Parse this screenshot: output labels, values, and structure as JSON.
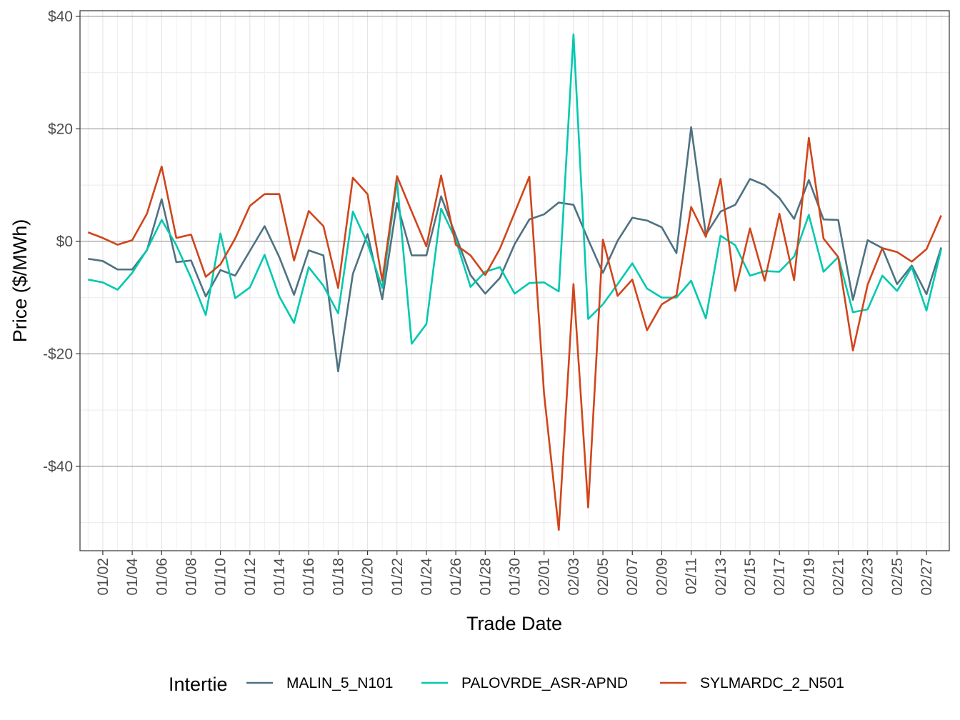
{
  "chart_data": {
    "type": "line",
    "title": "",
    "xlabel": "Trade Date",
    "ylabel": "Price ($/MWh)",
    "ylim": [
      -55,
      41
    ],
    "y_ticks": [
      -40,
      -20,
      0,
      20,
      40
    ],
    "y_tick_labels": [
      "-$40",
      "-$20",
      "$0",
      "$20",
      "$40"
    ],
    "x_tick_labels": [
      "01/02",
      "01/04",
      "01/06",
      "01/08",
      "01/10",
      "01/12",
      "01/14",
      "01/16",
      "01/18",
      "01/20",
      "01/22",
      "01/24",
      "01/26",
      "01/28",
      "01/30",
      "02/01",
      "02/03",
      "02/05",
      "02/07",
      "02/09",
      "02/11",
      "02/13",
      "02/15",
      "02/17",
      "02/19",
      "02/21",
      "02/23",
      "02/25",
      "02/27"
    ],
    "x": [
      "01/01",
      "01/02",
      "01/03",
      "01/04",
      "01/05",
      "01/06",
      "01/07",
      "01/08",
      "01/09",
      "01/10",
      "01/11",
      "01/12",
      "01/13",
      "01/14",
      "01/15",
      "01/16",
      "01/17",
      "01/18",
      "01/19",
      "01/20",
      "01/21",
      "01/22",
      "01/23",
      "01/24",
      "01/25",
      "01/26",
      "01/27",
      "01/28",
      "01/29",
      "01/30",
      "01/31",
      "02/01",
      "02/02",
      "02/03",
      "02/04",
      "02/05",
      "02/06",
      "02/07",
      "02/08",
      "02/09",
      "02/10",
      "02/11",
      "02/12",
      "02/13",
      "02/14",
      "02/15",
      "02/16",
      "02/17",
      "02/18",
      "02/19",
      "02/20",
      "02/21",
      "02/22",
      "02/23",
      "02/24",
      "02/25",
      "02/26",
      "02/27",
      "02/28"
    ],
    "grid": true,
    "legend": {
      "title": "Intertie",
      "position": "bottom"
    },
    "series": [
      {
        "name": "MALIN_5_N101",
        "color": "#4e7282",
        "values": [
          -3.1,
          -3.5,
          -5.0,
          -5.0,
          -1.6,
          7.5,
          -3.7,
          -3.4,
          -9.8,
          -5.1,
          -6.1,
          -1.7,
          2.7,
          -2.8,
          -9.5,
          -1.6,
          -2.5,
          -23.1,
          -5.8,
          1.3,
          -10.3,
          6.8,
          -2.5,
          -2.5,
          8.0,
          1.0,
          -6.0,
          -9.3,
          -6.5,
          -0.5,
          3.9,
          4.8,
          6.9,
          6.5,
          0.3,
          -5.6,
          0.1,
          4.2,
          3.7,
          2.5,
          -2.1,
          20.3,
          1.2,
          5.3,
          6.5,
          11.1,
          10.0,
          7.7,
          4.0,
          10.9,
          3.9,
          3.8,
          -10.4,
          0.2,
          -1.2,
          -7.6,
          -4.3,
          -9.4,
          -1.1
        ]
      },
      {
        "name": "PALOVRDE_ASR-APND",
        "color": "#00c9b0",
        "values": [
          -6.8,
          -7.3,
          -8.6,
          -5.6,
          -1.5,
          3.8,
          -0.7,
          -6.5,
          -13.1,
          1.4,
          -10.1,
          -8.2,
          -2.4,
          -9.8,
          -14.5,
          -4.6,
          -7.9,
          -12.8,
          5.3,
          -0.4,
          -8.3,
          10.8,
          -18.2,
          -14.7,
          5.8,
          0.3,
          -8.1,
          -5.4,
          -4.6,
          -9.3,
          -7.4,
          -7.3,
          -8.9,
          36.8,
          -13.8,
          -11.2,
          -7.6,
          -3.9,
          -8.4,
          -10.0,
          -10.0,
          -7.0,
          -13.7,
          1.0,
          -0.7,
          -6.1,
          -5.3,
          -5.4,
          -2.7,
          4.7,
          -5.4,
          -2.8,
          -12.6,
          -12.1,
          -6.1,
          -8.8,
          -4.6,
          -12.3,
          -1.4
        ]
      },
      {
        "name": "SYLMARDC_2_N501",
        "color": "#d0451b",
        "values": [
          1.6,
          0.6,
          -0.6,
          0.2,
          4.9,
          13.3,
          0.6,
          1.2,
          -6.3,
          -4.1,
          0.5,
          6.3,
          8.4,
          8.4,
          -3.4,
          5.4,
          2.7,
          -8.3,
          11.3,
          8.4,
          -7.0,
          11.6,
          5.3,
          -0.9,
          11.7,
          -0.6,
          -2.5,
          -6.0,
          -1.3,
          5.1,
          11.5,
          -27.1,
          -51.3,
          -7.6,
          -47.3,
          0.3,
          -9.7,
          -6.8,
          -15.8,
          -11.2,
          -9.6,
          6.1,
          0.8,
          11.1,
          -8.8,
          2.3,
          -7.0,
          4.9,
          -6.9,
          18.4,
          0.5,
          -2.8,
          -19.4,
          -7.7,
          -1.2,
          -1.9,
          -3.6,
          -1.4,
          4.6
        ]
      }
    ]
  }
}
